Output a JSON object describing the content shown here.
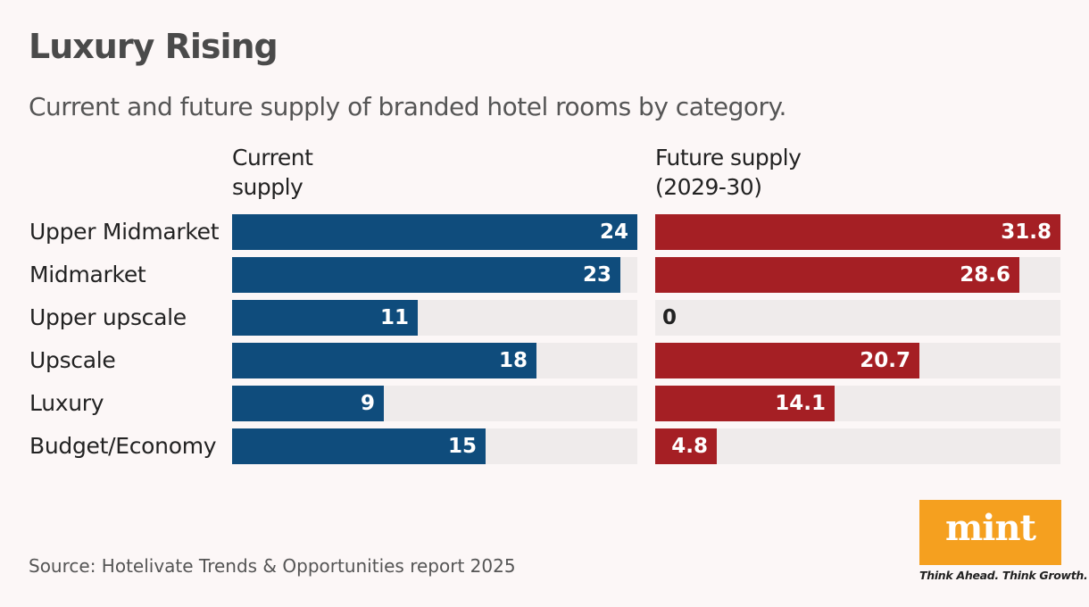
{
  "title": "Luxury Rising",
  "subtitle": "Current and future supply of branded hotel rooms by category.",
  "source": "Source: Hotelivate Trends & Opportunities report 2025",
  "logo": {
    "word": "mint",
    "tagline": "Think Ahead. Think Growth."
  },
  "colors": {
    "current": "#0f4c7c",
    "future": "#a51f24",
    "track": "#efebeb",
    "logo": "#f5a01f"
  },
  "chart_data": {
    "type": "bar",
    "orientation": "horizontal",
    "categories": [
      "Upper Midmarket",
      "Midmarket",
      "Upper upscale",
      "Upscale",
      "Luxury",
      "Budget/Economy"
    ],
    "series": [
      {
        "name": "Current\nsupply",
        "values": [
          24,
          23,
          11,
          18,
          9,
          15
        ],
        "max": 24
      },
      {
        "name": "Future supply\n(2029-30)",
        "values": [
          31.8,
          28.6,
          0,
          20.7,
          14.1,
          4.8
        ],
        "max": 31.8
      }
    ],
    "value_labels": [
      [
        "24",
        "23",
        "11",
        "18",
        "9",
        "15"
      ],
      [
        "31.8",
        "28.6",
        "0",
        "20.7",
        "14.1",
        "4.8"
      ]
    ]
  }
}
